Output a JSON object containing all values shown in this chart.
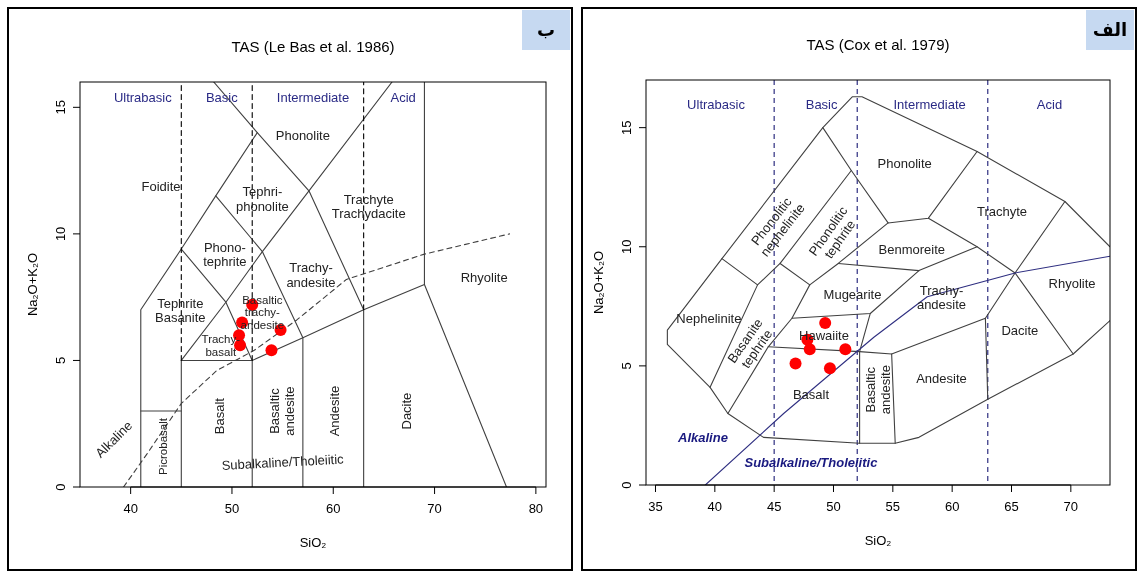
{
  "chart_data": [
    {
      "type": "scatter",
      "title": "TAS (Le Bas et al. 1986)",
      "xlabel": "SiO₂",
      "ylabel": "Na₂O+K₂O",
      "xlim": [
        35,
        81
      ],
      "ylim": [
        0,
        16
      ],
      "xticks": [
        40,
        50,
        60,
        70,
        80
      ],
      "yticks": [
        0,
        5,
        10,
        15
      ],
      "grid": false,
      "series": [
        {
          "type": "scatter",
          "marker": "circle",
          "color": "#ff0000",
          "x": [
            52.0,
            51.0,
            50.7,
            50.8,
            54.8,
            53.9
          ],
          "values": [
            7.2,
            6.5,
            6.0,
            5.6,
            6.2,
            5.4
          ]
        },
        {
          "type": "line",
          "line_style": "solid",
          "color": "#404040",
          "x": [
            41,
            41,
            45,
            48.4,
            52.5,
            48.2
          ],
          "values": [
            0,
            7,
            9.4,
            11.5,
            14,
            16
          ]
        },
        {
          "type": "line",
          "line_style": "solid",
          "color": "#404040",
          "x": [
            41,
            45
          ],
          "values": [
            3,
            3
          ]
        },
        {
          "type": "line",
          "line_style": "solid",
          "color": "#404040",
          "x": [
            45,
            45,
            52,
            57,
            63,
            69,
            77.1
          ],
          "values": [
            0,
            5,
            5,
            5.9,
            7,
            8,
            0
          ]
        },
        {
          "type": "line",
          "line_style": "solid",
          "color": "#404040",
          "x": [
            69,
            69
          ],
          "values": [
            8,
            16
          ]
        },
        {
          "type": "line",
          "line_style": "solid",
          "color": "#404040",
          "x": [
            45,
            49.4,
            53,
            57.6,
            65.8
          ],
          "values": [
            5,
            7.3,
            9.3,
            11.7,
            16
          ]
        },
        {
          "type": "line",
          "line_style": "solid",
          "color": "#404040",
          "x": [
            45,
            49.4,
            52,
            52
          ],
          "values": [
            9.4,
            7.3,
            5,
            0
          ]
        },
        {
          "type": "line",
          "line_style": "solid",
          "color": "#404040",
          "x": [
            48.4,
            53,
            57,
            57
          ],
          "values": [
            11.5,
            9.3,
            5.9,
            0
          ]
        },
        {
          "type": "line",
          "line_style": "solid",
          "color": "#404040",
          "x": [
            52.5,
            57.6,
            63,
            63
          ],
          "values": [
            14,
            11.7,
            7,
            0
          ]
        },
        {
          "type": "line",
          "line_style": "dashed",
          "color": "#000000",
          "x": [
            45,
            45
          ],
          "values": [
            5,
            16
          ]
        },
        {
          "type": "line",
          "line_style": "dashed",
          "color": "#000000",
          "x": [
            52,
            52
          ],
          "values": [
            5,
            16
          ]
        },
        {
          "type": "line",
          "line_style": "dashed",
          "color": "#000000",
          "x": [
            63,
            63
          ],
          "values": [
            7,
            16
          ]
        },
        {
          "type": "line",
          "line_style": "dashed",
          "color": "#404040",
          "x": [
            39.3,
            41.6,
            45,
            48.5,
            52.2,
            56.4,
            61.3,
            69,
            77.4
          ],
          "values": [
            0,
            1.3,
            3.3,
            4.6,
            5.4,
            6.6,
            8.2,
            9.2,
            10
          ]
        }
      ],
      "annotations": [
        "ب",
        "Ultrabasic",
        "Basic",
        "Intermediate",
        "Acid",
        "Phonolite",
        "Foidite",
        "Tephri-\nphonolite",
        "Trachyte\nTrachydacite",
        "Phono-\ntephrite",
        "Trachy-\nandesite",
        "Rhyolite",
        "Tephrite\nBasanite",
        "Basaltic\ntrachy-\nandesite",
        "Trachy-\nbasalt",
        "Basalt",
        "Basaltic\nandesite",
        "Andesite",
        "Dacite",
        "Picrobasalt",
        "Alkaline",
        "Subalkaline/Tholeiitic"
      ]
    },
    {
      "type": "scatter",
      "title": "TAS (Cox et al. 1979)",
      "xlabel": "SiO₂",
      "ylabel": "Na₂O+K₂O",
      "xlim": [
        34.2,
        73.3
      ],
      "ylim": [
        0,
        17
      ],
      "xticks": [
        35,
        40,
        45,
        50,
        55,
        60,
        65,
        70
      ],
      "yticks": [
        0,
        5,
        10,
        15
      ],
      "grid": false,
      "series": [
        {
          "type": "scatter",
          "marker": "circle",
          "color": "#ff0000",
          "x": [
            49.3,
            47.8,
            48.0,
            51.0,
            46.8,
            49.7
          ],
          "values": [
            6.8,
            6.1,
            5.7,
            5.7,
            5.1,
            4.9
          ]
        },
        {
          "type": "line",
          "line_style": "solid",
          "color": "#404040",
          "x": [
            73.3,
            70.2,
            63.0,
            57.2,
            55.2,
            52.2,
            44.1,
            41.1,
            39.6,
            36.0,
            36.0,
            40.6,
            49.1,
            51.6,
            52.4,
            62.1,
            69.5,
            73.3
          ],
          "values": [
            6.9,
            5.5,
            3.6,
            2.0,
            1.75,
            1.75,
            2.0,
            3.0,
            4.1,
            5.9,
            6.5,
            9.5,
            15.0,
            16.3,
            16.3,
            14.0,
            11.9,
            10.0
          ]
        },
        {
          "type": "line",
          "line_style": "solid",
          "color": "#404040",
          "x": [
            40.6,
            43.6
          ],
          "values": [
            9.5,
            8.4
          ]
        },
        {
          "type": "line",
          "line_style": "solid",
          "color": "#404040",
          "x": [
            39.6,
            43.6,
            45.5,
            51.5
          ],
          "values": [
            4.1,
            8.4,
            9.3,
            13.2
          ]
        },
        {
          "type": "line",
          "line_style": "solid",
          "color": "#404040",
          "x": [
            49.1,
            51.5,
            54.6,
            58.0,
            62.1
          ],
          "values": [
            15.0,
            13.2,
            11.0,
            11.2,
            14.0
          ]
        },
        {
          "type": "line",
          "line_style": "solid",
          "color": "#404040",
          "x": [
            45.5,
            48.0
          ],
          "values": [
            9.3,
            8.4
          ]
        },
        {
          "type": "line",
          "line_style": "solid",
          "color": "#404040",
          "x": [
            41.1,
            44.5,
            46.5,
            48.0,
            50.4,
            54.6
          ],
          "values": [
            3.0,
            5.8,
            7.0,
            8.4,
            9.3,
            11.0
          ]
        },
        {
          "type": "line",
          "line_style": "solid",
          "color": "#404040",
          "x": [
            50.4,
            57.2
          ],
          "values": [
            9.3,
            9.0
          ]
        },
        {
          "type": "line",
          "line_style": "solid",
          "color": "#404040",
          "x": [
            58.0,
            62.1,
            65.3,
            70.2
          ],
          "values": [
            11.2,
            10.0,
            8.9,
            5.5
          ]
        },
        {
          "type": "line",
          "line_style": "solid",
          "color": "#404040",
          "x": [
            46.5,
            53.1,
            57.2,
            62.1
          ],
          "values": [
            7.0,
            7.2,
            9.0,
            10.0
          ]
        },
        {
          "type": "line",
          "line_style": "solid",
          "color": "#404040",
          "x": [
            53.1,
            52.2,
            52.2
          ],
          "values": [
            7.2,
            5.6,
            1.75
          ]
        },
        {
          "type": "line",
          "line_style": "solid",
          "color": "#404040",
          "x": [
            44.5,
            52.2,
            54.9,
            55.2
          ],
          "values": [
            5.8,
            5.6,
            5.5,
            1.75
          ]
        },
        {
          "type": "line",
          "line_style": "solid",
          "color": "#404040",
          "x": [
            54.9,
            62.8,
            63.0
          ],
          "values": [
            5.5,
            7.0,
            3.6
          ]
        },
        {
          "type": "line",
          "line_style": "solid",
          "color": "#404040",
          "x": [
            62.8,
            65.3,
            69.5
          ],
          "values": [
            7.0,
            8.9,
            11.9
          ]
        },
        {
          "type": "line",
          "line_style": "solid",
          "color": "#2e2e80",
          "x": [
            39.2,
            45.8,
            53.4,
            57.9,
            65.3,
            73.3
          ],
          "values": [
            0,
            3.0,
            6.2,
            7.9,
            8.9,
            9.6
          ]
        }
      ],
      "ref_lines": [
        {
          "axis": "x",
          "value": 45,
          "color": "#2e2e80",
          "line_style": "dashed"
        },
        {
          "axis": "x",
          "value": 52,
          "color": "#2e2e80",
          "line_style": "dashed"
        },
        {
          "axis": "x",
          "value": 63,
          "color": "#2e2e80",
          "line_style": "dashed"
        }
      ],
      "annotations": [
        "الف",
        "Ultrabasic",
        "Basic",
        "Intermediate",
        "Acid",
        "Phonolite",
        "Phonolitic\nnephelinite",
        "Phonolitic\ntephrite",
        "Trachyte",
        "Benmoreite",
        "Mugearite",
        "Trachy-\nandesite",
        "Rhyolite",
        "Nephelinite",
        "Basanite\ntephrite",
        "Hawaiite",
        "Dacite",
        "Basalt",
        "Basaltic\nandesite",
        "Andesite",
        "Alkaline",
        "Subalkaline/Tholeiitic"
      ]
    }
  ]
}
